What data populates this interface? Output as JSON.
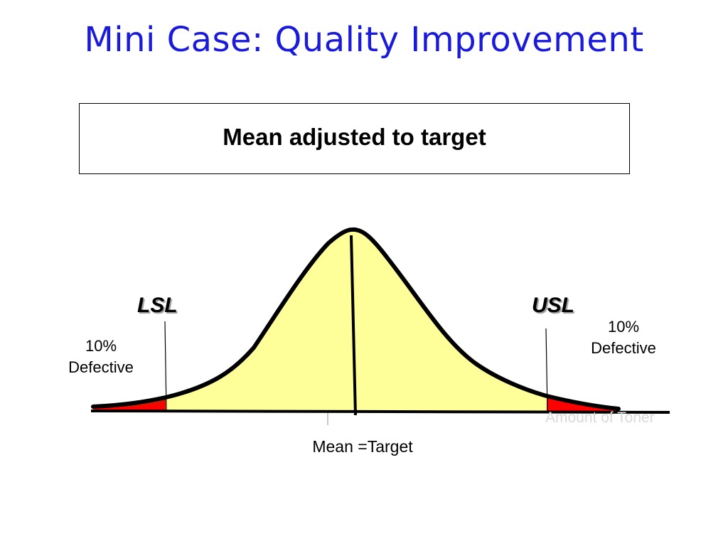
{
  "slide": {
    "title": "Mini Case: Quality Improvement",
    "subtitle": "Mean adjusted to target"
  },
  "diagram": {
    "lsl_label": "LSL",
    "usl_label": "USL",
    "left_tail": {
      "percent": "10%",
      "text": "Defective"
    },
    "right_tail": {
      "percent": "10%",
      "text": "Defective"
    },
    "mean_label": "Mean =Target",
    "axis_label": "Amount of Toner",
    "colors": {
      "title": "#1a1adb",
      "curve_fill": "#ffff99",
      "defect_fill": "#ff0000",
      "curve_stroke": "#000000"
    }
  }
}
